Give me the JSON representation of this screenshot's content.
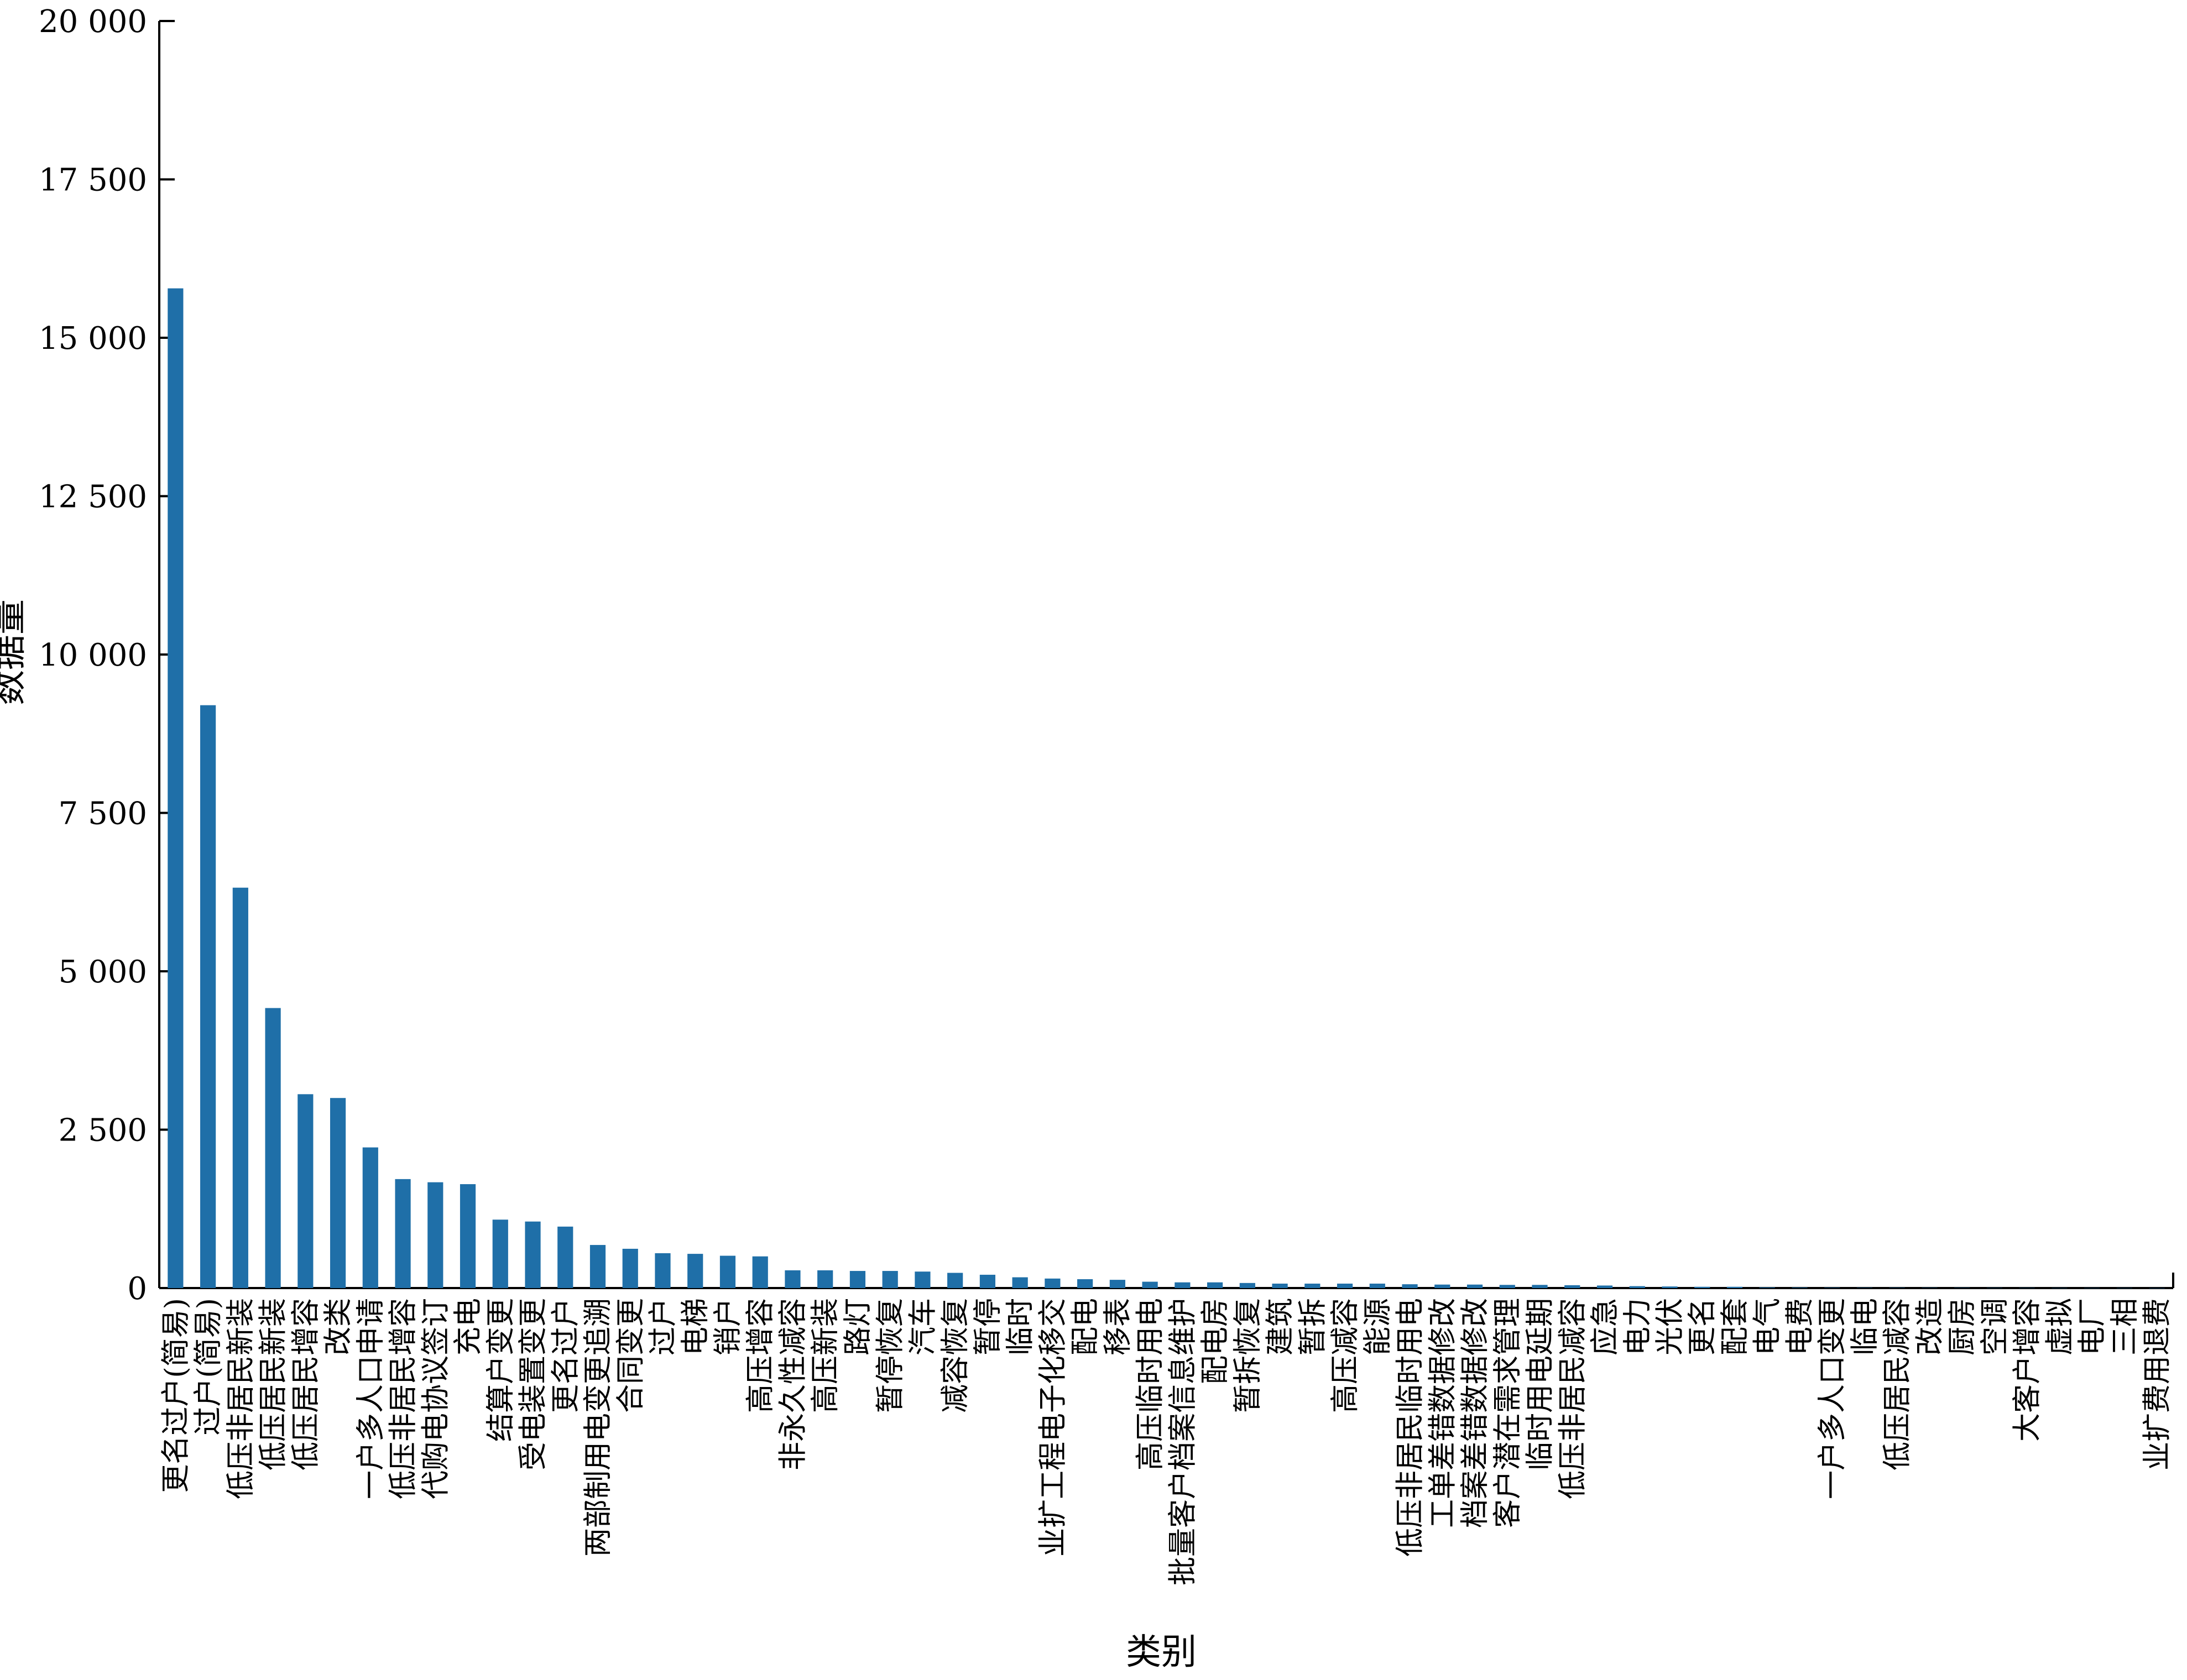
{
  "chart_data": {
    "type": "bar",
    "title": "",
    "xlabel": "类别",
    "ylabel": "数据量",
    "ylim": [
      0,
      20000
    ],
    "yticks": [
      0,
      2500,
      5000,
      7500,
      10000,
      12500,
      15000,
      17500,
      20000
    ],
    "ytick_labels": [
      "0",
      "2 500",
      "5 000",
      "7 500",
      "10 000",
      "12 500",
      "15 000",
      "17 500",
      "20 000"
    ],
    "grid": false,
    "legend": "none",
    "bar_color": "#1f6fa8",
    "categories": [
      "更名过户(简易)",
      "过户(简易)",
      "低压非居民新装",
      "低压居民新装",
      "低压居民增容",
      "改类",
      "一户多人口申请",
      "低压非居民增容",
      "代购电协议签订",
      "充电",
      "结算户变更",
      "受电装置变更",
      "更名过户",
      "两部制用电变更追溯",
      "合同变更",
      "过户",
      "电梯",
      "销户",
      "高压增容",
      "非永久性减容",
      "高压新装",
      "路灯",
      "暂停恢复",
      "汽车",
      "减容恢复",
      "暂停",
      "临时",
      "业扩工程电子化移交",
      "配电",
      "移表",
      "高压临时用电",
      "批量客户档案信息维护",
      "配电房",
      "暂拆恢复",
      "建筑",
      "暂拆",
      "高压减容",
      "能源",
      "低压非居民临时用电",
      "工单差错数据修改",
      "档案差错数据修改",
      "客户潜在需求管理",
      "临时用电延期",
      "低压非居民减容",
      "应急",
      "电力",
      "光伏",
      "更名",
      "配套",
      "电气",
      "电费",
      "一户多人口变更",
      "临电",
      "低压居民减容",
      "改造",
      "厨房",
      "空调",
      "大客户增容",
      "虚拟",
      "电厂",
      "三相",
      "业扩费用退费"
    ],
    "values": [
      15780,
      9200,
      6320,
      4420,
      3060,
      3000,
      2220,
      1720,
      1670,
      1640,
      1080,
      1050,
      970,
      680,
      620,
      550,
      540,
      510,
      500,
      280,
      280,
      270,
      270,
      260,
      240,
      210,
      170,
      150,
      140,
      130,
      100,
      90,
      90,
      80,
      70,
      70,
      70,
      70,
      60,
      55,
      55,
      50,
      50,
      45,
      40,
      30,
      25,
      20,
      20,
      10,
      8,
      6,
      5,
      5,
      4,
      4,
      3,
      3,
      2,
      2,
      2,
      1
    ]
  }
}
